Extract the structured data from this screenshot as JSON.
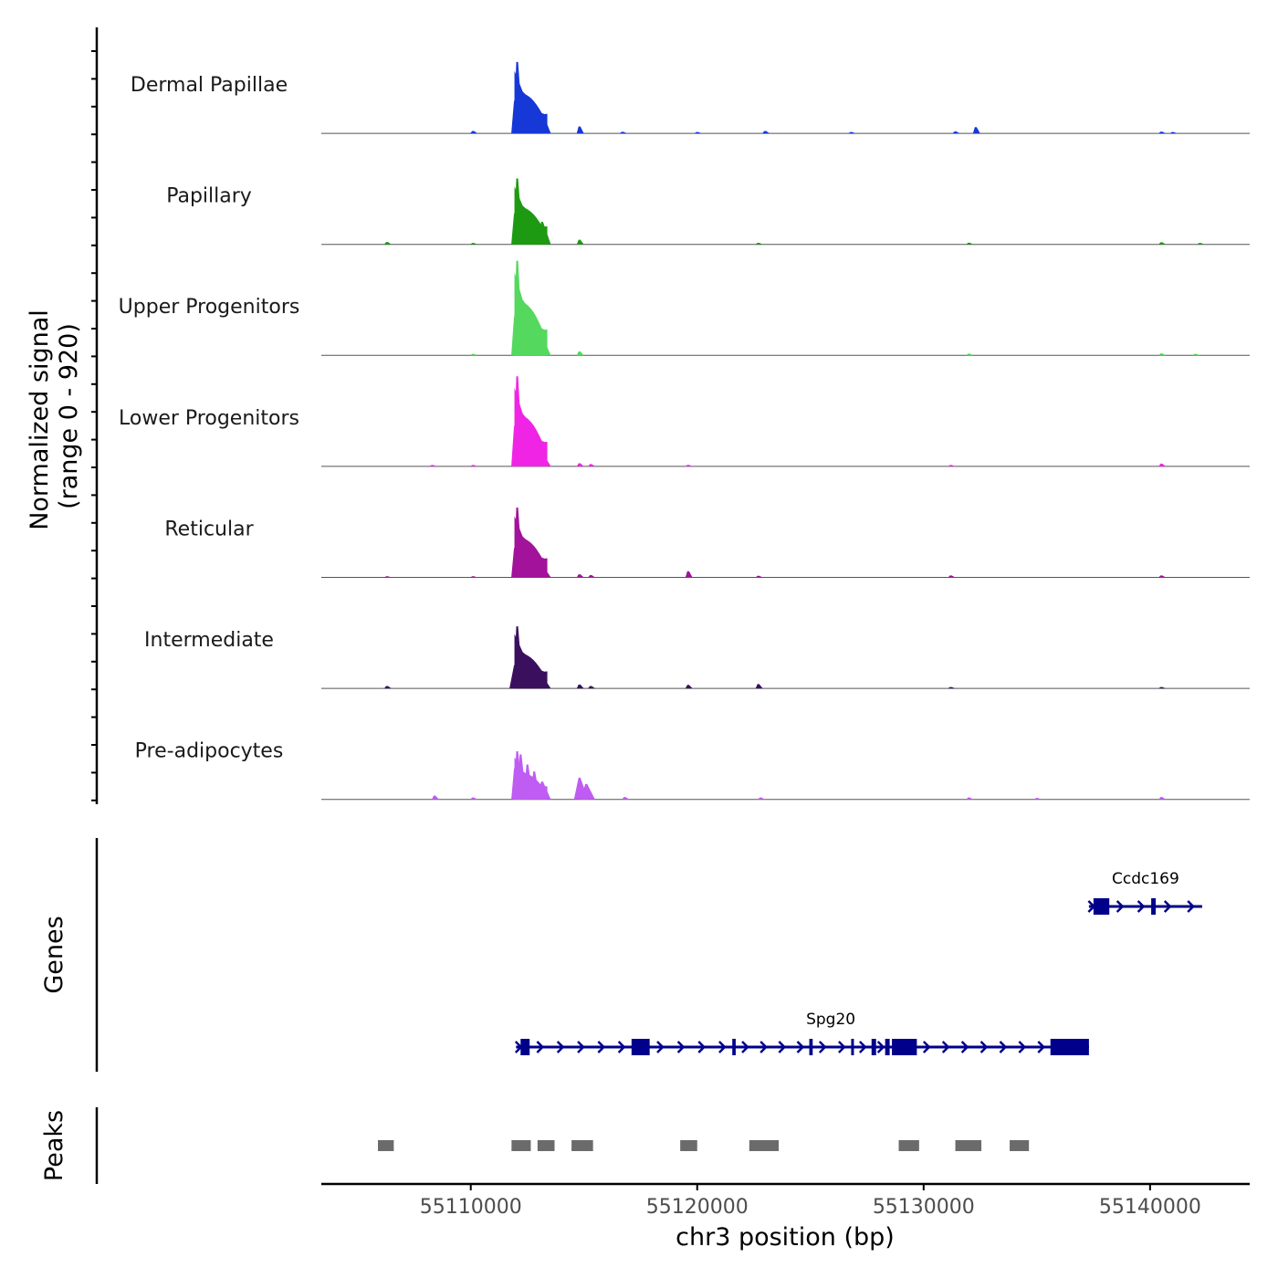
{
  "chart_data": {
    "type": "area",
    "title": "",
    "ylabel_line1": "Normalized signal",
    "ylabel_line2": "(range 0 - 920)",
    "xlabel": "chr3 position (bp)",
    "xlim": [
      55103400,
      55144400
    ],
    "x_ticks": [
      55110000,
      55120000,
      55130000,
      55140000
    ],
    "x_tick_labels": [
      "55110000",
      "55120000",
      "55130000",
      "55140000"
    ],
    "signal_range": [
      0,
      920
    ],
    "tracks": [
      {
        "name": "Dermal Papillae",
        "color": "#1538D6",
        "peaks": [
          [
            55112050,
            920
          ],
          [
            55111950,
            420
          ],
          [
            55112300,
            380
          ],
          [
            55112550,
            300
          ],
          [
            55112800,
            220
          ],
          [
            55113150,
            250
          ],
          [
            55114800,
            90
          ],
          [
            55110100,
            30
          ],
          [
            55123000,
            30
          ],
          [
            55132300,
            80
          ],
          [
            55131400,
            25
          ],
          [
            55116700,
            20
          ],
          [
            55120000,
            18
          ],
          [
            55126800,
            18
          ],
          [
            55140500,
            22
          ],
          [
            55141000,
            18
          ]
        ]
      },
      {
        "name": "Papillary",
        "color": "#1D9A12",
        "peaks": [
          [
            55112050,
            850
          ],
          [
            55111950,
            400
          ],
          [
            55112300,
            330
          ],
          [
            55112550,
            270
          ],
          [
            55112800,
            210
          ],
          [
            55113150,
            290
          ],
          [
            55114800,
            60
          ],
          [
            55106300,
            30
          ],
          [
            55110100,
            18
          ],
          [
            55122700,
            20
          ],
          [
            55132000,
            22
          ],
          [
            55140500,
            28
          ],
          [
            55142200,
            18
          ]
        ]
      },
      {
        "name": "Upper Progenitors",
        "color": "#54D85E",
        "peaks": [
          [
            55112050,
            1220
          ],
          [
            55111950,
            500
          ],
          [
            55112300,
            450
          ],
          [
            55112550,
            380
          ],
          [
            55112800,
            250
          ],
          [
            55113150,
            230
          ],
          [
            55114800,
            50
          ],
          [
            55110100,
            20
          ],
          [
            55132000,
            22
          ],
          [
            55140500,
            25
          ],
          [
            55142000,
            20
          ]
        ]
      },
      {
        "name": "Lower Progenitors",
        "color": "#F024E5",
        "peaks": [
          [
            55112050,
            1160
          ],
          [
            55111950,
            520
          ],
          [
            55112300,
            460
          ],
          [
            55112550,
            330
          ],
          [
            55112800,
            170
          ],
          [
            55113150,
            170
          ],
          [
            55114800,
            40
          ],
          [
            55115300,
            30
          ],
          [
            55110100,
            18
          ],
          [
            55119600,
            20
          ],
          [
            55131200,
            18
          ],
          [
            55140500,
            35
          ],
          [
            55108300,
            18
          ]
        ]
      },
      {
        "name": "Reticular",
        "color": "#A2129A",
        "peaks": [
          [
            55112050,
            900
          ],
          [
            55111950,
            380
          ],
          [
            55112300,
            350
          ],
          [
            55112550,
            250
          ],
          [
            55112800,
            160
          ],
          [
            55113150,
            150
          ],
          [
            55114800,
            40
          ],
          [
            55115300,
            30
          ],
          [
            55119600,
            80
          ],
          [
            55106300,
            15
          ],
          [
            55110100,
            15
          ],
          [
            55122700,
            20
          ],
          [
            55131200,
            25
          ],
          [
            55140500,
            25
          ]
        ]
      },
      {
        "name": "Intermediate",
        "color": "#3A0F5E",
        "peaks": [
          [
            55112050,
            800
          ],
          [
            55111950,
            300
          ],
          [
            55112300,
            280
          ],
          [
            55112550,
            210
          ],
          [
            55112800,
            150
          ],
          [
            55113150,
            150
          ],
          [
            55114800,
            50
          ],
          [
            55115300,
            30
          ],
          [
            55106300,
            30
          ],
          [
            55119600,
            45
          ],
          [
            55122700,
            55
          ],
          [
            55131200,
            18
          ],
          [
            55140500,
            18
          ]
        ]
      },
      {
        "name": "Pre-adipocytes",
        "color": "#BF5CF2",
        "peaks": [
          [
            55112050,
            620
          ],
          [
            55112200,
            580
          ],
          [
            55111950,
            400
          ],
          [
            55112500,
            450
          ],
          [
            55112800,
            360
          ],
          [
            55113150,
            230
          ],
          [
            55114800,
            280
          ],
          [
            55115100,
            200
          ],
          [
            55108400,
            50
          ],
          [
            55110100,
            25
          ],
          [
            55116800,
            30
          ],
          [
            55122800,
            25
          ],
          [
            55132000,
            25
          ],
          [
            55135000,
            18
          ],
          [
            55140500,
            30
          ]
        ]
      }
    ],
    "genes": [
      {
        "name": "Ccdc169",
        "start": 55137300,
        "end": 55142300,
        "strand": "+",
        "exons": [
          [
            55137500,
            55138200
          ],
          [
            55140050,
            55140250
          ]
        ],
        "introns": [
          [
            55137300,
            55137500
          ],
          [
            55138200,
            55140050
          ],
          [
            55140250,
            55142300
          ]
        ]
      },
      {
        "name": "Spg20",
        "start": 55112000,
        "end": 55137300,
        "strand": "+",
        "exons": [
          [
            55112200,
            55112600
          ],
          [
            55117100,
            55117900
          ],
          [
            55121550,
            55121700
          ],
          [
            55124950,
            55125100
          ],
          [
            55126800,
            55126900
          ],
          [
            55127700,
            55127900
          ],
          [
            55128300,
            55128500
          ],
          [
            55128600,
            55129700
          ],
          [
            55135600,
            55137300
          ]
        ],
        "introns": [
          [
            55112000,
            55112200
          ],
          [
            55112600,
            55117100
          ],
          [
            55117900,
            55121550
          ],
          [
            55121700,
            55124950
          ],
          [
            55125100,
            55126800
          ],
          [
            55126900,
            55127700
          ],
          [
            55127900,
            55128300
          ],
          [
            55129700,
            55135600
          ]
        ]
      }
    ],
    "gene_color": "#00008B",
    "genes_label": "Genes",
    "peak_regions": [
      [
        55105900,
        55106600
      ],
      [
        55111800,
        55112650
      ],
      [
        55112950,
        55113700
      ],
      [
        55114450,
        55115400
      ],
      [
        55119250,
        55120000
      ],
      [
        55122300,
        55123600
      ],
      [
        55128900,
        55129800
      ],
      [
        55131400,
        55132550
      ],
      [
        55133800,
        55134650
      ]
    ],
    "peaks_label": "Peaks",
    "peak_color": "#6B6B6B"
  }
}
